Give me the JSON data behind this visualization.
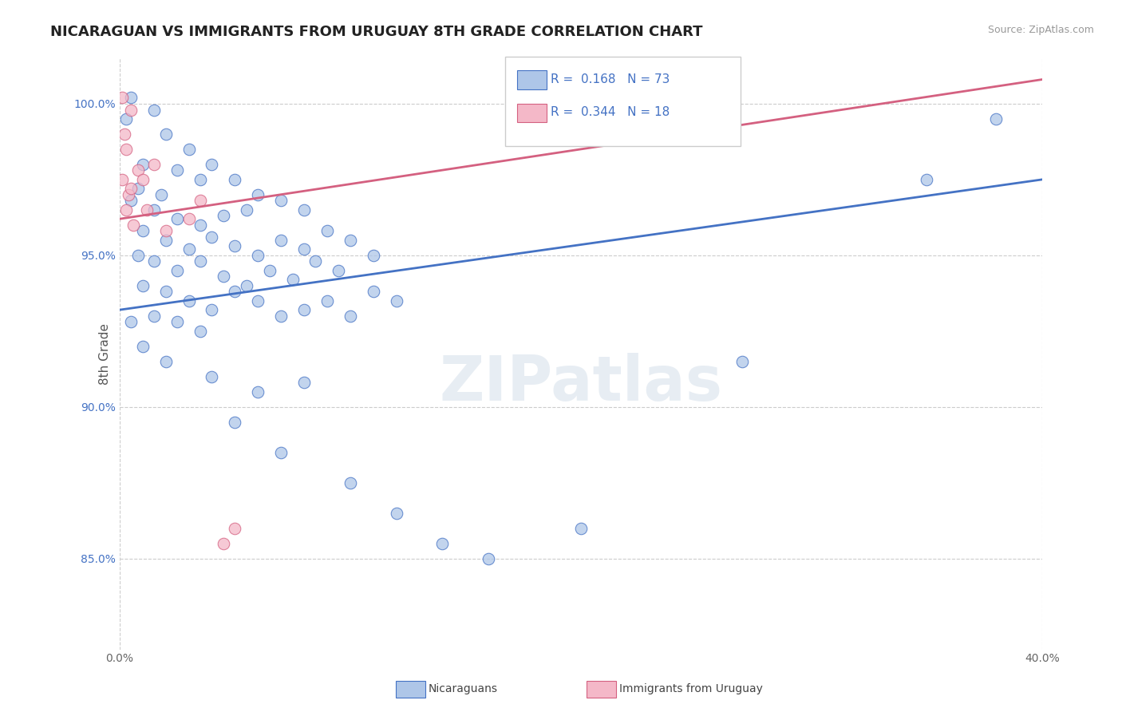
{
  "title": "NICARAGUAN VS IMMIGRANTS FROM URUGUAY 8TH GRADE CORRELATION CHART",
  "source": "Source: ZipAtlas.com",
  "ylabel": "8th Grade",
  "xlim": [
    0.0,
    40.0
  ],
  "ylim": [
    82.0,
    101.5
  ],
  "y_tick_positions": [
    85.0,
    90.0,
    95.0,
    100.0
  ],
  "y_tick_labels": [
    "85.0%",
    "90.0%",
    "95.0%",
    "100.0%"
  ],
  "x_tick_positions": [
    0.0,
    40.0
  ],
  "x_tick_labels": [
    "0.0%",
    "40.0%"
  ],
  "legend_blue_label": "Nicaraguans",
  "legend_pink_label": "Immigrants from Uruguay",
  "R_blue": 0.168,
  "N_blue": 73,
  "R_pink": 0.344,
  "N_pink": 18,
  "blue_color": "#aec6e8",
  "blue_edge_color": "#4472c4",
  "blue_line_color": "#4472c4",
  "pink_color": "#f4b8c8",
  "pink_edge_color": "#d46080",
  "pink_line_color": "#d46080",
  "watermark": "ZIPatlas",
  "background_color": "#ffffff",
  "grid_color": "#cccccc",
  "legend_R_color": "#4472c4",
  "blue_scatter": [
    [
      0.3,
      99.5
    ],
    [
      0.5,
      100.2
    ],
    [
      1.5,
      99.8
    ],
    [
      2.0,
      99.0
    ],
    [
      3.0,
      98.5
    ],
    [
      4.0,
      98.0
    ],
    [
      1.0,
      98.0
    ],
    [
      2.5,
      97.8
    ],
    [
      3.5,
      97.5
    ],
    [
      0.8,
      97.2
    ],
    [
      1.8,
      97.0
    ],
    [
      5.0,
      97.5
    ],
    [
      6.0,
      97.0
    ],
    [
      0.5,
      96.8
    ],
    [
      1.5,
      96.5
    ],
    [
      2.5,
      96.2
    ],
    [
      3.5,
      96.0
    ],
    [
      4.5,
      96.3
    ],
    [
      5.5,
      96.5
    ],
    [
      7.0,
      96.8
    ],
    [
      8.0,
      96.5
    ],
    [
      1.0,
      95.8
    ],
    [
      2.0,
      95.5
    ],
    [
      3.0,
      95.2
    ],
    [
      4.0,
      95.6
    ],
    [
      5.0,
      95.3
    ],
    [
      6.0,
      95.0
    ],
    [
      7.0,
      95.5
    ],
    [
      8.0,
      95.2
    ],
    [
      9.0,
      95.8
    ],
    [
      10.0,
      95.5
    ],
    [
      11.0,
      95.0
    ],
    [
      0.8,
      95.0
    ],
    [
      1.5,
      94.8
    ],
    [
      2.5,
      94.5
    ],
    [
      3.5,
      94.8
    ],
    [
      4.5,
      94.3
    ],
    [
      5.5,
      94.0
    ],
    [
      6.5,
      94.5
    ],
    [
      7.5,
      94.2
    ],
    [
      8.5,
      94.8
    ],
    [
      9.5,
      94.5
    ],
    [
      1.0,
      94.0
    ],
    [
      2.0,
      93.8
    ],
    [
      3.0,
      93.5
    ],
    [
      4.0,
      93.2
    ],
    [
      5.0,
      93.8
    ],
    [
      6.0,
      93.5
    ],
    [
      7.0,
      93.0
    ],
    [
      8.0,
      93.2
    ],
    [
      9.0,
      93.5
    ],
    [
      10.0,
      93.0
    ],
    [
      11.0,
      93.8
    ],
    [
      12.0,
      93.5
    ],
    [
      1.5,
      93.0
    ],
    [
      2.5,
      92.8
    ],
    [
      3.5,
      92.5
    ],
    [
      0.5,
      92.8
    ],
    [
      1.0,
      92.0
    ],
    [
      2.0,
      91.5
    ],
    [
      4.0,
      91.0
    ],
    [
      6.0,
      90.5
    ],
    [
      8.0,
      90.8
    ],
    [
      5.0,
      89.5
    ],
    [
      7.0,
      88.5
    ],
    [
      10.0,
      87.5
    ],
    [
      12.0,
      86.5
    ],
    [
      14.0,
      85.5
    ],
    [
      16.0,
      85.0
    ],
    [
      20.0,
      86.0
    ],
    [
      27.0,
      91.5
    ],
    [
      35.0,
      97.5
    ],
    [
      38.0,
      99.5
    ]
  ],
  "pink_scatter": [
    [
      0.1,
      100.2
    ],
    [
      0.5,
      99.8
    ],
    [
      0.2,
      99.0
    ],
    [
      0.3,
      98.5
    ],
    [
      0.1,
      97.5
    ],
    [
      0.4,
      97.0
    ],
    [
      0.5,
      97.2
    ],
    [
      0.8,
      97.8
    ],
    [
      1.0,
      97.5
    ],
    [
      1.5,
      98.0
    ],
    [
      0.3,
      96.5
    ],
    [
      0.6,
      96.0
    ],
    [
      1.2,
      96.5
    ],
    [
      2.0,
      95.8
    ],
    [
      3.0,
      96.2
    ],
    [
      3.5,
      96.8
    ],
    [
      4.5,
      85.5
    ],
    [
      5.0,
      86.0
    ]
  ],
  "blue_trendline": [
    0.0,
    93.2,
    40.0,
    97.5
  ],
  "pink_trendline": [
    0.0,
    96.2,
    40.0,
    100.8
  ]
}
